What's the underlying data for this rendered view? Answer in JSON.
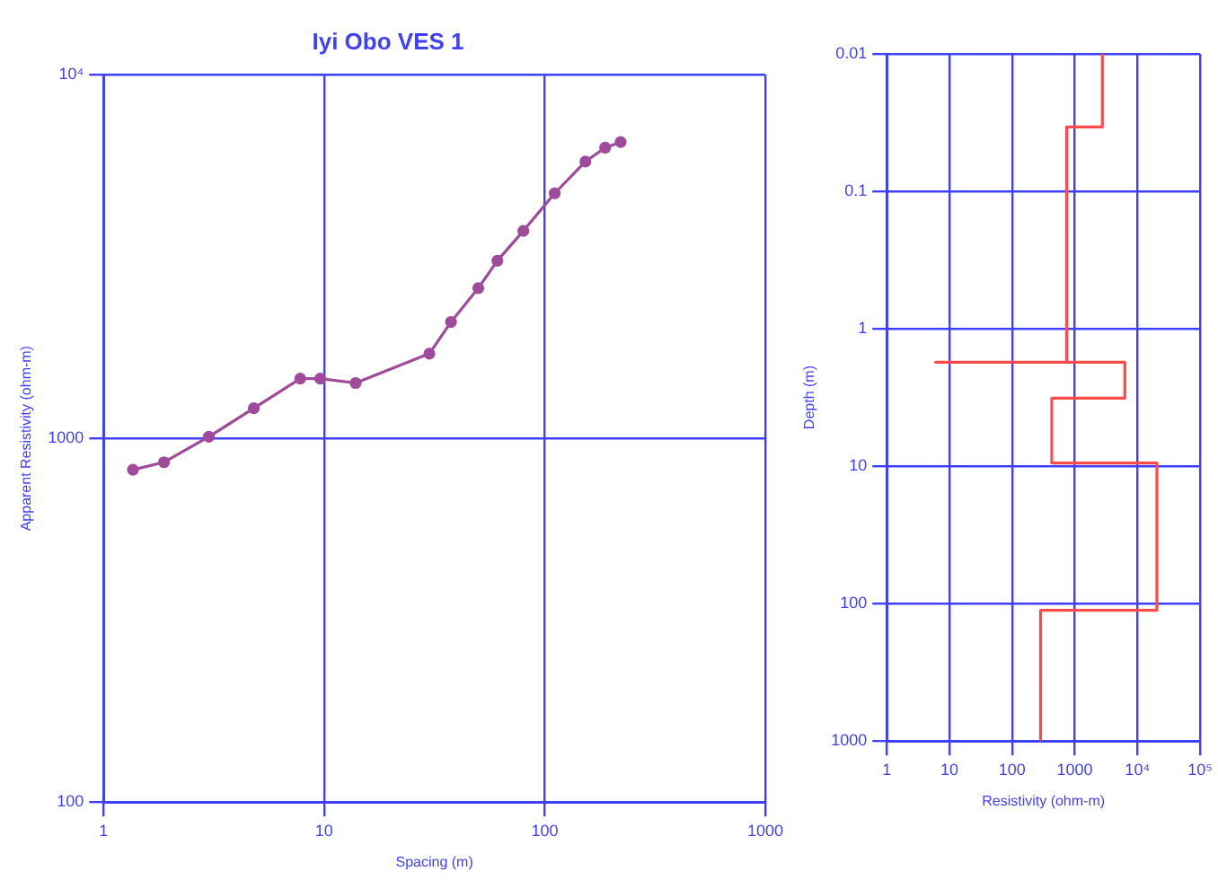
{
  "chart_data": [
    {
      "type": "line",
      "title": "Iyi Obo VES 1",
      "xlabel": "Spacing (m)",
      "ylabel": "Apparent Resistivity (ohm-m)",
      "log": "xy",
      "grid": true,
      "marker": "circle",
      "legend": false,
      "xlim": [
        1,
        1000
      ],
      "xticks": [
        1,
        10,
        100,
        1000
      ],
      "ylim": [
        100,
        10000
      ],
      "yticks": [
        100,
        1000,
        {
          "value": 10000,
          "label": "10⁴"
        }
      ],
      "x": [
        1.36,
        1.88,
        3.0,
        4.8,
        7.8,
        9.6,
        13.9,
        30,
        37.6,
        50,
        61,
        80,
        111,
        153,
        188,
        221
      ],
      "series": [
        {
          "color": "#a04a9c",
          "values": [
            820,
            860,
            1010,
            1210,
            1460,
            1460,
            1420,
            1710,
            2090,
            2590,
            3080,
            3720,
            4720,
            5770,
            6300,
            6530
          ]
        }
      ]
    },
    {
      "type": "line",
      "xlabel": "Resistivity (ohm-m)",
      "ylabel": "Depth (m)",
      "log": "xy",
      "grid": true,
      "marker": "none",
      "legend": false,
      "xlim": [
        1,
        100000
      ],
      "xticks": [
        1,
        10,
        100,
        1000,
        {
          "value": 10000,
          "label": "10⁴"
        },
        {
          "value": 100000,
          "label": "10⁵"
        }
      ],
      "ylim": [
        1000,
        0.01
      ],
      "yticks": [
        0.01,
        0.1,
        1,
        10,
        100,
        1000
      ],
      "x": [
        2760,
        2760,
        745,
        745,
        6,
        6300,
        6300,
        430,
        430,
        20500,
        20500,
        285,
        285
      ],
      "series": [
        {
          "color": "#ff4a4a",
          "values": [
            0.01,
            0.034,
            0.034,
            1.75,
            1.75,
            1.75,
            3.2,
            3.2,
            9.5,
            9.5,
            112,
            112,
            1000
          ]
        }
      ]
    }
  ]
}
